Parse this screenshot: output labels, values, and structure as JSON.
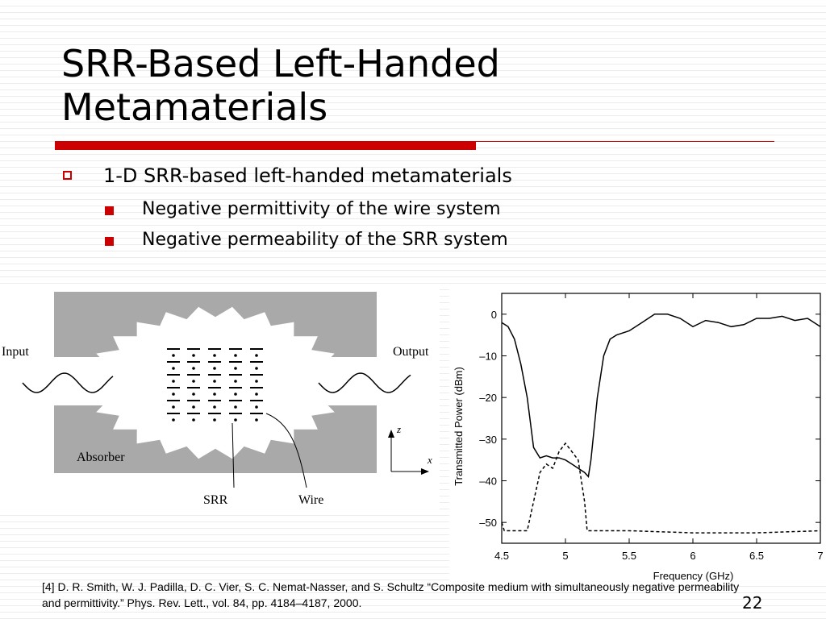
{
  "slide": {
    "title": "SRR-Based Left-Handed Metamaterials",
    "bullets": [
      {
        "text": "1-D SRR-based left-handed metamaterials",
        "level": 1
      },
      {
        "text": "Negative permittivity of the wire system",
        "level": 2
      },
      {
        "text": "Negative permeability of the SRR system",
        "level": 2
      }
    ],
    "reference": "[4] D. R. Smith, W. J. Padilla, D. C. Vier, S. C. Nemat-Nasser, and S. Schultz “Composite medium with simultaneously negative permeability and permittivity.” Phys. Rev. Lett., vol. 84, pp. 4184–4187, 2000.",
    "page_number": "22"
  },
  "diagram": {
    "input": "Input",
    "output": "Output",
    "absorber": "Absorber",
    "srr": "SRR",
    "wire": "Wire",
    "axis_z": "z",
    "axis_x": "x"
  },
  "chart_data": {
    "type": "line",
    "x_label": "Frequency (GHz)",
    "y_label": "Transmitted Power (dBm)",
    "xlim": [
      4.5,
      7
    ],
    "ylim": [
      -55,
      5
    ],
    "xticks": [
      4.5,
      5,
      5.5,
      6,
      6.5,
      7
    ],
    "yticks": [
      0,
      {
        "value": -10,
        "label": "–10"
      },
      {
        "value": -20,
        "label": "–20"
      },
      {
        "value": -30,
        "label": "–30"
      },
      {
        "value": -40,
        "label": "–40"
      },
      {
        "value": -50,
        "label": "–50"
      }
    ],
    "series": [
      {
        "color": "#000000",
        "style": "solid",
        "x": [
          4.5,
          4.55,
          4.6,
          4.65,
          4.7,
          4.75,
          4.8,
          4.85,
          4.9,
          4.95,
          5.0,
          5.05,
          5.1,
          5.15,
          5.18,
          5.2,
          5.25,
          5.3,
          5.35,
          5.4,
          5.5,
          5.6,
          5.7,
          5.8,
          5.9,
          6.0,
          6.1,
          6.2,
          6.3,
          6.4,
          6.5,
          6.6,
          6.7,
          6.8,
          6.9,
          7.0
        ],
        "values": [
          -2,
          -3,
          -6,
          -12,
          -20,
          -32,
          -34.5,
          -34,
          -34.5,
          -34.5,
          -35,
          -36,
          -37,
          -38,
          -39,
          -35,
          -20,
          -10,
          -6,
          -5,
          -4,
          -2,
          0,
          0,
          -1,
          -3,
          -1.5,
          -2,
          -3,
          -2.5,
          -1,
          -1,
          -0.5,
          -1.5,
          -1,
          -3
        ]
      },
      {
        "color": "#000000",
        "style": "dashed",
        "x": [
          4.5,
          4.52,
          4.6,
          4.7,
          4.75,
          4.8,
          4.85,
          4.9,
          4.95,
          5.0,
          5.05,
          5.1,
          5.15,
          5.17,
          5.3,
          5.5,
          6.0,
          6.5,
          7.0
        ],
        "values": [
          -50,
          -52,
          -52,
          -52,
          -45,
          -38,
          -36,
          -37,
          -33,
          -31,
          -33,
          -35,
          -45,
          -52,
          -52,
          -52,
          -52.5,
          -52.5,
          -52
        ]
      }
    ]
  }
}
